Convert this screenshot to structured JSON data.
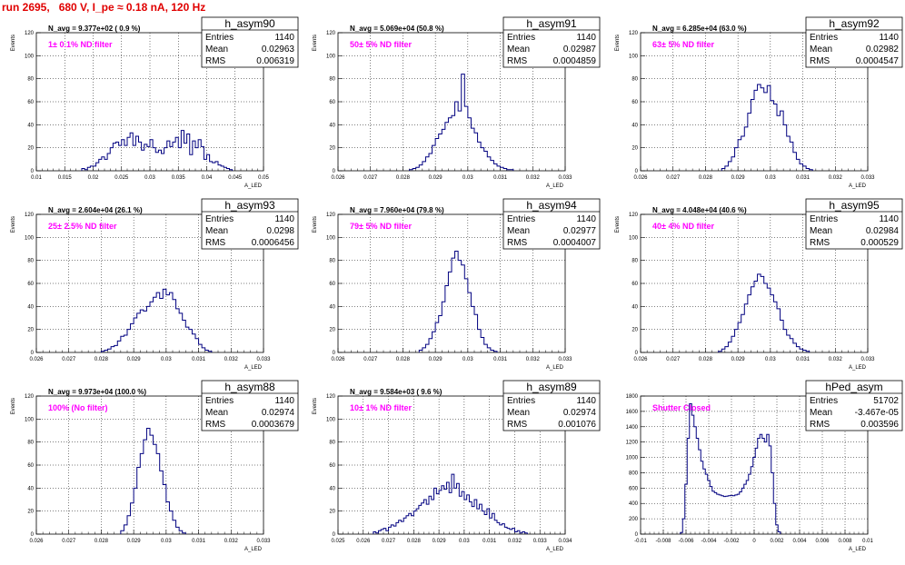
{
  "title": "run 2695,   680 V, I_pe ≈ 0.18 nA, 120 Hz",
  "stats_labels": {
    "entries": "Entries",
    "mean": "Mean",
    "rms": "RMS"
  },
  "chart_data": [
    {
      "type": "bar",
      "name": "h_asym90",
      "navg": "N_avg = 9.377e+02 ( 0.9 %)",
      "filter_label": "1± 0.1% ND filter",
      "entries": "1140",
      "mean": "0.02963",
      "rms": "0.006319",
      "xlim": [
        0.01,
        0.05
      ],
      "xticks": [
        "0.01",
        "0.015",
        "0.02",
        "0.025",
        "0.03",
        "0.035",
        "0.04",
        "0.045",
        "0.05"
      ],
      "xlabel": "A_LED",
      "ylabel": "Events",
      "ylim": [
        0,
        120
      ],
      "yticks": [
        "0",
        "20",
        "40",
        "60",
        "80",
        "100",
        "120"
      ],
      "bin_start": 0.018,
      "bin_width": 0.0005,
      "values": [
        2,
        1,
        3,
        4,
        4,
        7,
        10,
        12,
        10,
        15,
        20,
        24,
        25,
        22,
        27,
        22,
        29,
        33,
        22,
        30,
        25,
        18,
        23,
        21,
        27,
        20,
        16,
        18,
        15,
        20,
        26,
        21,
        25,
        29,
        20,
        35,
        24,
        32,
        14,
        26,
        20,
        27,
        21,
        10,
        14,
        8,
        7,
        8,
        5,
        4,
        3,
        2,
        1
      ]
    },
    {
      "type": "bar",
      "name": "h_asym91",
      "navg": "N_avg = 5.069e+04 (50.8 %)",
      "filter_label": "50± 5% ND filter",
      "entries": "1140",
      "mean": "0.02987",
      "rms": "0.0004859",
      "xlim": [
        0.026,
        0.033
      ],
      "xticks": [
        "0.026",
        "0.027",
        "0.028",
        "0.029",
        "0.03",
        "0.031",
        "0.032",
        "0.033"
      ],
      "xlabel": "A_LED",
      "ylabel": "Events",
      "ylim": [
        0,
        120
      ],
      "yticks": [
        "0",
        "20",
        "40",
        "60",
        "80",
        "100",
        "120"
      ],
      "bin_start": 0.0282,
      "bin_width": 0.0001,
      "values": [
        1,
        2,
        3,
        5,
        8,
        12,
        15,
        22,
        28,
        32,
        36,
        42,
        46,
        48,
        60,
        52,
        84,
        56,
        46,
        37,
        33,
        25,
        20,
        17,
        12,
        9,
        6,
        4,
        3,
        2,
        1,
        1
      ]
    },
    {
      "type": "bar",
      "name": "h_asym92",
      "navg": "N_avg = 6.285e+04 (63.0 %)",
      "filter_label": "63± 5% ND filter",
      "entries": "1140",
      "mean": "0.02982",
      "rms": "0.0004547",
      "xlim": [
        0.026,
        0.033
      ],
      "xticks": [
        "0.026",
        "0.027",
        "0.028",
        "0.029",
        "0.03",
        "0.031",
        "0.032",
        "0.033"
      ],
      "xlabel": "A_LED",
      "ylabel": "Events",
      "ylim": [
        0,
        120
      ],
      "yticks": [
        "0",
        "20",
        "40",
        "60",
        "80",
        "100",
        "120"
      ],
      "bin_start": 0.0285,
      "bin_width": 0.0001,
      "values": [
        2,
        4,
        8,
        12,
        20,
        27,
        30,
        38,
        50,
        62,
        70,
        75,
        72,
        68,
        74,
        61,
        58,
        48,
        52,
        40,
        30,
        25,
        16,
        10,
        6,
        4,
        2,
        1
      ]
    },
    {
      "type": "bar",
      "name": "h_asym93",
      "navg": "N_avg = 2.604e+04 (26.1 %)",
      "filter_label": "25± 2.5% ND filter",
      "entries": "1140",
      "mean": "0.0298",
      "rms": "0.0006456",
      "xlim": [
        0.026,
        0.033
      ],
      "xticks": [
        "0.026",
        "0.027",
        "0.028",
        "0.029",
        "0.03",
        "0.031",
        "0.032",
        "0.033"
      ],
      "xlabel": "A_LED",
      "ylabel": "Events",
      "ylim": [
        0,
        120
      ],
      "yticks": [
        "0",
        "20",
        "40",
        "60",
        "80",
        "100",
        "120"
      ],
      "bin_start": 0.028,
      "bin_width": 0.0001,
      "values": [
        1,
        2,
        3,
        5,
        6,
        10,
        14,
        15,
        20,
        25,
        30,
        34,
        37,
        36,
        40,
        44,
        48,
        52,
        47,
        55,
        50,
        52,
        46,
        38,
        34,
        28,
        22,
        20,
        16,
        12,
        7,
        4,
        2,
        1
      ]
    },
    {
      "type": "bar",
      "name": "h_asym94",
      "navg": "N_avg = 7.960e+04 (79.8 %)",
      "filter_label": "79± 5% ND filter",
      "entries": "1140",
      "mean": "0.02977",
      "rms": "0.0004007",
      "xlim": [
        0.026,
        0.033
      ],
      "xticks": [
        "0.026",
        "0.027",
        "0.028",
        "0.029",
        "0.03",
        "0.031",
        "0.032",
        "0.033"
      ],
      "xlabel": "A_LED",
      "ylabel": "Events",
      "ylim": [
        0,
        120
      ],
      "yticks": [
        "0",
        "20",
        "40",
        "60",
        "80",
        "100",
        "120"
      ],
      "bin_start": 0.0285,
      "bin_width": 0.0001,
      "values": [
        2,
        4,
        7,
        12,
        18,
        26,
        32,
        44,
        58,
        70,
        82,
        88,
        80,
        76,
        64,
        52,
        40,
        33,
        20,
        13,
        7,
        4,
        2,
        1
      ]
    },
    {
      "type": "bar",
      "name": "h_asym95",
      "navg": "N_avg = 4.048e+04 (40.6 %)",
      "filter_label": "40± 4% ND filter",
      "entries": "1140",
      "mean": "0.02984",
      "rms": "0.000529",
      "xlim": [
        0.026,
        0.033
      ],
      "xticks": [
        "0.026",
        "0.027",
        "0.028",
        "0.029",
        "0.03",
        "0.031",
        "0.032",
        "0.033"
      ],
      "xlabel": "A_LED",
      "ylabel": "Events",
      "ylim": [
        0,
        120
      ],
      "yticks": [
        "0",
        "20",
        "40",
        "60",
        "80",
        "100",
        "120"
      ],
      "bin_start": 0.0284,
      "bin_width": 0.0001,
      "values": [
        1,
        3,
        5,
        9,
        14,
        20,
        26,
        33,
        42,
        50,
        57,
        62,
        68,
        66,
        60,
        56,
        50,
        44,
        38,
        28,
        20,
        15,
        12,
        8,
        5,
        3,
        2,
        1
      ]
    },
    {
      "type": "bar",
      "name": "h_asym88",
      "navg": "N_avg = 9.973e+04 (100.0 %)",
      "filter_label": "100% (No filter)",
      "entries": "1140",
      "mean": "0.02974",
      "rms": "0.0003679",
      "xlim": [
        0.026,
        0.033
      ],
      "xticks": [
        "0.026",
        "0.027",
        "0.028",
        "0.029",
        "0.03",
        "0.031",
        "0.032",
        "0.033"
      ],
      "xlabel": "A_LED",
      "ylabel": "Events",
      "ylim": [
        0,
        120
      ],
      "yticks": [
        "0",
        "20",
        "40",
        "60",
        "80",
        "100",
        "120"
      ],
      "bin_start": 0.0286,
      "bin_width": 0.0001,
      "values": [
        3,
        8,
        16,
        27,
        40,
        58,
        70,
        82,
        92,
        86,
        78,
        70,
        55,
        43,
        28,
        20,
        12,
        6,
        3,
        1
      ]
    },
    {
      "type": "bar",
      "name": "h_asym89",
      "navg": "N_avg = 9.584e+03 ( 9.6 %)",
      "filter_label": "10± 1% ND filter",
      "entries": "1140",
      "mean": "0.02974",
      "rms": "0.001076",
      "xlim": [
        0.025,
        0.034
      ],
      "xticks": [
        "0.025",
        "0.026",
        "0.027",
        "0.028",
        "0.029",
        "0.03",
        "0.031",
        "0.032",
        "0.033",
        "0.034"
      ],
      "xlabel": "A_LED",
      "ylabel": "Events",
      "ylim": [
        0,
        120
      ],
      "yticks": [
        "0",
        "20",
        "40",
        "60",
        "80",
        "100",
        "120"
      ],
      "bin_start": 0.0264,
      "bin_width": 0.0001,
      "values": [
        2,
        1,
        3,
        4,
        5,
        3,
        6,
        8,
        7,
        10,
        12,
        11,
        14,
        16,
        18,
        16,
        20,
        22,
        25,
        27,
        30,
        26,
        33,
        30,
        40,
        35,
        38,
        42,
        39,
        45,
        36,
        52,
        40,
        44,
        33,
        37,
        30,
        34,
        28,
        24,
        30,
        22,
        26,
        20,
        17,
        22,
        14,
        18,
        12,
        10,
        8,
        9,
        6,
        5,
        4,
        5,
        2,
        3,
        1,
        2,
        1
      ]
    },
    {
      "type": "bar",
      "name": "hPed_asym",
      "navg": "",
      "filter_label": "Shutter Closed",
      "entries": "51702",
      "mean": "-3.467e-05",
      "rms": "0.003596",
      "xlim": [
        -0.01,
        0.01
      ],
      "xticks": [
        "-0.01",
        "-0.008",
        "-0.006",
        "-0.004",
        "-0.002",
        "0",
        "0.002",
        "0.004",
        "0.006",
        "0.008",
        "0.01"
      ],
      "xlabel": "A_LED",
      "ylabel": "",
      "ylim": [
        0,
        1800
      ],
      "yticks": [
        "0",
        "200",
        "400",
        "600",
        "800",
        "1000",
        "1200",
        "1400",
        "1600",
        "1800"
      ],
      "bin_start": -0.0065,
      "bin_width": 0.0002,
      "values": [
        20,
        200,
        650,
        1250,
        1700,
        1550,
        1400,
        1250,
        1100,
        950,
        850,
        780,
        700,
        620,
        560,
        540,
        520,
        510,
        500,
        490,
        495,
        500,
        505,
        500,
        510,
        520,
        550,
        600,
        650,
        700,
        780,
        880,
        1000,
        1120,
        1250,
        1300,
        1250,
        1200,
        1300,
        1150,
        800,
        400,
        120,
        30
      ]
    }
  ]
}
